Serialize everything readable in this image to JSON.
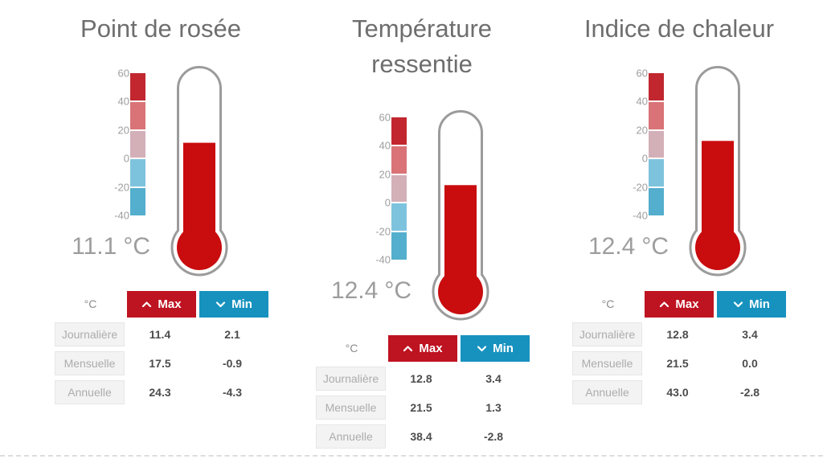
{
  "colors": {
    "mercury_red": "#c90c0e",
    "max_button_red": "#be1321",
    "min_button_blue": "#1792bf",
    "thermometer_outline_gray": "#9b9b9b",
    "scale_segments": [
      "#c2272f",
      "#d97377",
      "#d3afb8",
      "#7ec3de",
      "#54aecd"
    ]
  },
  "chart_data": [
    {
      "type": "gauge",
      "title": "Point de rosée",
      "value": "11.1",
      "unit": "°C",
      "scale_ticks": [
        "60",
        "40",
        "20",
        "0",
        "-20",
        "-40"
      ],
      "scale_max": 60,
      "scale_min": -40,
      "table": {
        "unit_header": "°C",
        "max_label": "Max",
        "min_label": "Min",
        "rows": [
          {
            "label": "Journalière",
            "max": "11.4",
            "min": "2.1"
          },
          {
            "label": "Mensuelle",
            "max": "17.5",
            "min": "-0.9"
          },
          {
            "label": "Annuelle",
            "max": "24.3",
            "min": "-4.3"
          }
        ]
      }
    },
    {
      "type": "gauge",
      "title": "Température ressentie",
      "value": "12.4",
      "unit": "°C",
      "scale_ticks": [
        "60",
        "40",
        "20",
        "0",
        "-20",
        "-40"
      ],
      "scale_max": 60,
      "scale_min": -40,
      "table": {
        "unit_header": "°C",
        "max_label": "Max",
        "min_label": "Min",
        "rows": [
          {
            "label": "Journalière",
            "max": "12.8",
            "min": "3.4"
          },
          {
            "label": "Mensuelle",
            "max": "21.5",
            "min": "1.3"
          },
          {
            "label": "Annuelle",
            "max": "38.4",
            "min": "-2.8"
          }
        ]
      }
    },
    {
      "type": "gauge",
      "title": "Indice de chaleur",
      "value": "12.4",
      "unit": "°C",
      "scale_ticks": [
        "60",
        "40",
        "20",
        "0",
        "-20",
        "-40"
      ],
      "scale_max": 60,
      "scale_min": -40,
      "table": {
        "unit_header": "°C",
        "max_label": "Max",
        "min_label": "Min",
        "rows": [
          {
            "label": "Journalière",
            "max": "12.8",
            "min": "3.4"
          },
          {
            "label": "Mensuelle",
            "max": "21.5",
            "min": "0.0"
          },
          {
            "label": "Annuelle",
            "max": "43.0",
            "min": "-2.8"
          }
        ]
      }
    }
  ]
}
